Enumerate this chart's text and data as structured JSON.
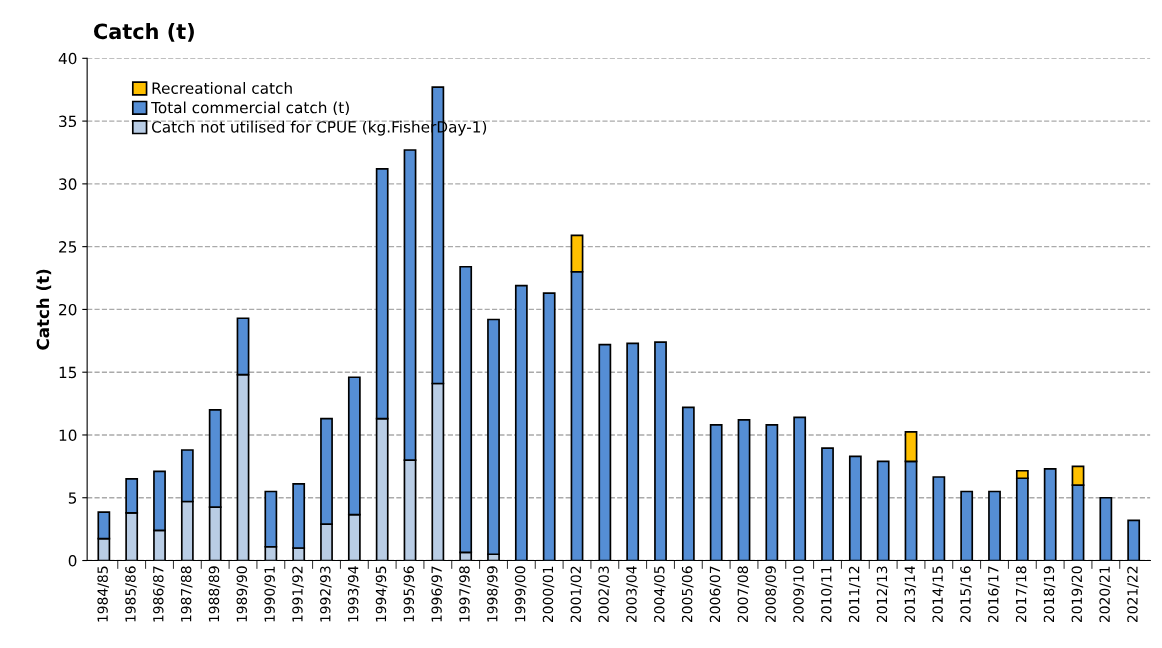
{
  "chart_data": {
    "type": "bar",
    "title": "Catch (t)",
    "ylabel": "Catch (t)",
    "stacked": true,
    "grid": "y",
    "legend": "top left",
    "categories": [
      "1984/85",
      "1985/86",
      "1986/87",
      "1987/88",
      "1988/89",
      "1989/90",
      "1990/91",
      "1991/92",
      "1992/93",
      "1993/94",
      "1994/95",
      "1995/96",
      "1996/97",
      "1997/98",
      "1998/99",
      "1999/00",
      "2000/01",
      "2001/02",
      "2002/03",
      "2003/04",
      "2004/05",
      "2005/06",
      "2006/07",
      "2007/08",
      "2008/09",
      "2009/10",
      "2010/11",
      "2011/12",
      "2012/13",
      "2013/14",
      "2014/15",
      "2015/16",
      "2016/17",
      "2017/18",
      "2018/19",
      "2019/20",
      "2020/21",
      "2021/22"
    ],
    "ylim": [
      0,
      40
    ],
    "yticks": [
      0,
      5,
      10,
      15,
      20,
      25,
      30,
      35,
      40
    ],
    "series": [
      {
        "name": "Catch not utilised for CPUE (kg.FisherDay-1)",
        "color": "#b9cde5",
        "values": [
          1.75,
          3.8,
          2.4,
          4.7,
          4.25,
          14.8,
          1.1,
          1.0,
          2.9,
          3.65,
          11.3,
          8.0,
          14.1,
          0.65,
          0.5,
          null,
          null,
          null,
          null,
          null,
          null,
          null,
          null,
          null,
          null,
          null,
          null,
          null,
          null,
          null,
          null,
          null,
          null,
          null,
          null,
          null,
          null,
          null
        ]
      },
      {
        "name": "Total commercial catch (t)",
        "color": "#558ed5",
        "values": [
          2.1,
          2.7,
          4.7,
          4.1,
          7.75,
          4.5,
          4.4,
          5.1,
          8.4,
          10.95,
          19.9,
          24.7,
          23.6,
          22.75,
          18.7,
          21.9,
          21.3,
          23.0,
          17.2,
          17.3,
          17.4,
          12.2,
          10.8,
          11.2,
          10.8,
          11.4,
          8.95,
          8.3,
          7.9,
          7.9,
          6.65,
          5.5,
          5.5,
          6.55,
          7.3,
          6.0,
          5.0,
          3.2
        ]
      },
      {
        "name": "Recreational catch",
        "color": "#ffc000",
        "values": [
          null,
          null,
          null,
          null,
          null,
          null,
          null,
          null,
          null,
          null,
          null,
          null,
          null,
          null,
          null,
          null,
          null,
          2.9,
          null,
          null,
          null,
          null,
          null,
          null,
          null,
          null,
          null,
          null,
          null,
          2.35,
          null,
          null,
          null,
          0.6,
          null,
          1.5,
          null,
          null
        ]
      }
    ]
  }
}
